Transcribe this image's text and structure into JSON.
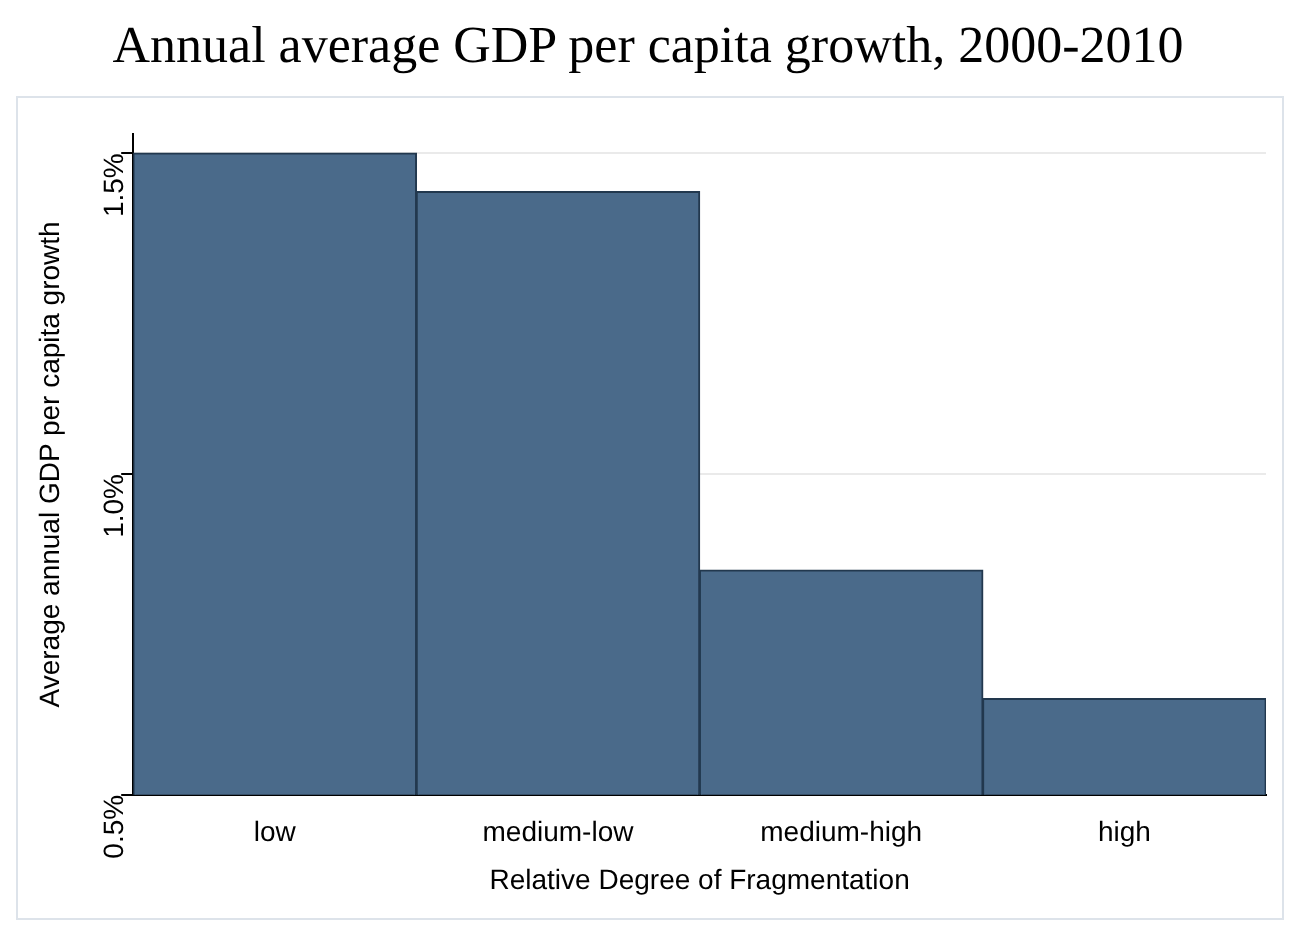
{
  "chart_data": {
    "type": "bar",
    "title": "Annual average GDP per capita growth, 2000-2010",
    "xlabel": "Relative Degree of Fragmentation",
    "ylabel": "Average annual GDP per capita growth",
    "categories": [
      "low",
      "medium-low",
      "medium-high",
      "high"
    ],
    "values": [
      1.5,
      1.44,
      0.85,
      0.65
    ],
    "color": "#4a6a8a",
    "ylim": [
      0.5,
      1.53
    ],
    "yticks": [
      {
        "value": 0.5,
        "label": "0.5%"
      },
      {
        "value": 1.0,
        "label": "1.0%"
      },
      {
        "value": 1.5,
        "label": "1.5%"
      }
    ],
    "grid": "y",
    "legend": false
  }
}
